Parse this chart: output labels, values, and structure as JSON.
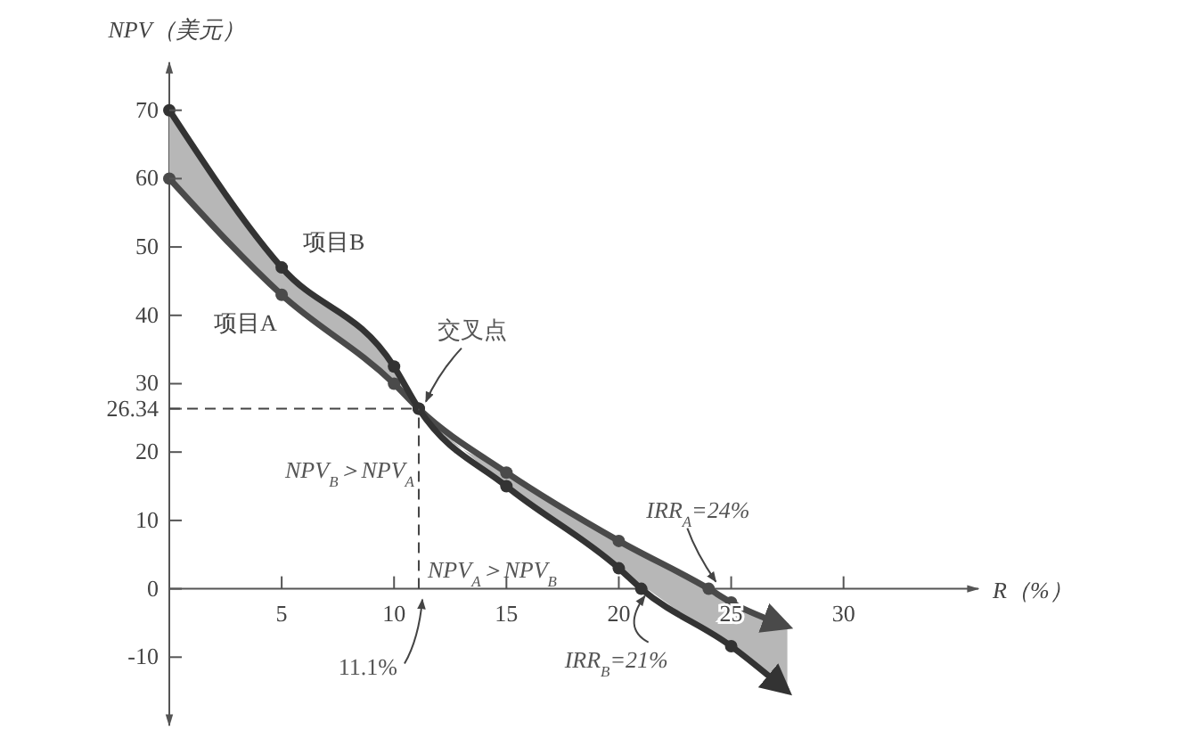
{
  "chart_data": {
    "type": "line",
    "xlabel": "R（%）",
    "ylabel": "NPV（美元）",
    "series": [
      {
        "name": "项目A",
        "color": "#4a4a4a",
        "x": [
          0,
          5,
          10,
          11.1,
          15,
          20,
          24,
          25,
          27.5
        ],
        "values": [
          60,
          43,
          30,
          26.34,
          17,
          7,
          0,
          -2,
          -5.5
        ],
        "lower": [
          60,
          43,
          30,
          26.34,
          15,
          3,
          -6.3,
          -8.4,
          -15
        ],
        "upper": [
          70,
          47,
          32.5,
          26.34,
          17,
          7,
          0,
          -2,
          -5.5
        ]
      },
      {
        "name": "项目B",
        "color": "#333333",
        "x": [
          0,
          5,
          10,
          11.1,
          15,
          20,
          21,
          25,
          27.5
        ],
        "values": [
          70,
          47,
          32.5,
          26.34,
          15,
          3,
          0,
          -8.4,
          -15
        ]
      }
    ],
    "xlim": [
      0,
      36
    ],
    "ylim": [
      -20,
      77
    ],
    "xticks": [
      5,
      10,
      15,
      20,
      25,
      30
    ],
    "yticks": [
      -10,
      0,
      10,
      20,
      26.34,
      30,
      40,
      50,
      60,
      70
    ],
    "ref_lines": [
      {
        "axis": "y",
        "value": 26.34
      },
      {
        "axis": "x",
        "value": 11.1,
        "label": "11.1%"
      }
    ],
    "annotations": [
      {
        "text": "交叉点",
        "x": 11.1,
        "y": 26.34
      },
      "NPV$_{B}$＞NPV$_{A}$",
      "NPV$_{A}$＞NPV$_{B}$",
      {
        "text": "IRR$_{A}$=24%",
        "x": 24,
        "y": 0
      },
      {
        "text": "IRR$_{B}$=21%",
        "x": 21,
        "y": 0
      }
    ],
    "marker": "circle",
    "line_style": "solid",
    "grid": false,
    "legend": false
  }
}
